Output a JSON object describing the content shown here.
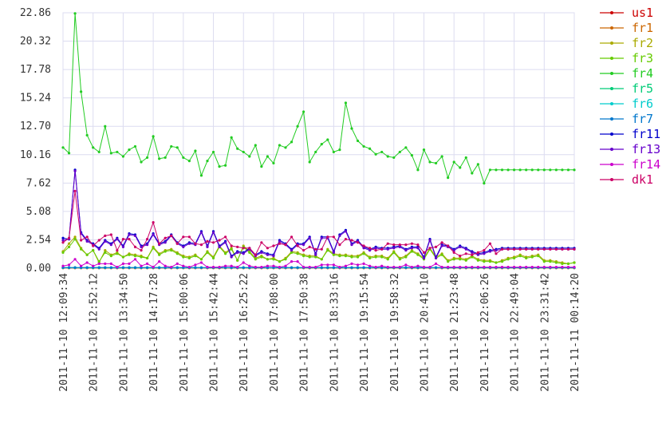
{
  "chart_data": {
    "type": "line",
    "ylim": [
      0,
      22.86
    ],
    "y_ticks": [
      "0.00",
      "2.54",
      "5.08",
      "7.62",
      "10.16",
      "12.70",
      "15.24",
      "17.78",
      "20.32",
      "22.86"
    ],
    "x_tick_labels": [
      "2011-11-10 12:09:34",
      "2011-11-10 12:52:12",
      "2011-11-10 13:34:50",
      "2011-11-10 14:17:28",
      "2011-11-10 15:00:06",
      "2011-11-10 15:42:44",
      "2011-11-10 16:25:22",
      "2011-11-10 17:08:00",
      "2011-11-10 17:50:38",
      "2011-11-10 18:33:16",
      "2011-11-10 19:15:54",
      "2011-11-10 19:58:32",
      "2011-11-10 20:41:10",
      "2011-11-10 21:23:48",
      "2011-11-10 22:06:26",
      "2011-11-10 22:49:04",
      "2011-11-10 23:31:42",
      "2011-11-11 00:14:20"
    ],
    "grid": true,
    "legend_position": "right",
    "n_points": 86,
    "series": [
      {
        "name": "us1",
        "color": "#cc0000",
        "values": [
          0.03,
          0.03,
          0.03,
          0.03,
          0.03,
          0.03,
          0.03,
          0.03,
          0.03,
          0.03,
          0.03,
          0.03,
          0.03,
          0.03,
          0.03,
          0.03,
          0.03,
          0.03,
          0.03,
          0.03,
          0.03,
          0.03,
          0.03,
          0.03,
          0.03,
          0.03,
          0.03,
          0.03,
          0.03,
          0.03,
          0.03,
          0.03,
          0.03,
          0.03,
          0.03,
          0.03,
          0.03,
          0.03,
          0.03,
          0.03,
          0.03,
          0.03,
          0.03,
          0.03,
          0.03,
          0.03,
          0.03,
          0.03,
          0.03,
          0.03,
          0.03,
          0.03,
          0.03,
          0.03,
          0.03,
          0.03,
          0.03,
          0.03,
          0.03,
          0.03,
          0.03,
          0.03,
          0.03,
          0.03,
          0.03,
          0.03,
          0.03,
          0.03,
          0.03,
          0.03,
          0.03,
          0.03,
          0.03,
          0.03,
          0.03,
          0.03,
          0.03,
          0.03,
          0.03,
          0.03,
          0.03,
          0.03,
          0.03,
          0.03,
          0.03,
          0.03
        ]
      },
      {
        "name": "fr1",
        "color": "#cc6600",
        "values": [
          0.02,
          0.02,
          0.02,
          0.02,
          0.02,
          0.02,
          0.02,
          0.02,
          0.02,
          0.02,
          0.02,
          0.02,
          0.02,
          0.02,
          0.02,
          0.02,
          0.02,
          0.02,
          0.02,
          0.02,
          0.02,
          0.02,
          0.02,
          0.02,
          0.02,
          0.02,
          0.02,
          0.02,
          0.02,
          0.02,
          0.02,
          0.02,
          0.02,
          0.02,
          0.02,
          0.02,
          0.02,
          0.02,
          0.02,
          0.02,
          0.02,
          0.02,
          0.02,
          0.02,
          0.02,
          0.02,
          0.02,
          0.02,
          0.02,
          0.02,
          0.02,
          0.02,
          0.02,
          0.02,
          0.02,
          0.02,
          0.02,
          0.02,
          0.02,
          0.02,
          0.02,
          0.02,
          0.02,
          0.02,
          0.02,
          0.02,
          0.02,
          0.02,
          0.02,
          0.02,
          0.02,
          0.02,
          0.02,
          0.02,
          0.02,
          0.02,
          0.02,
          0.02,
          0.02,
          0.02,
          0.02,
          0.02,
          0.02,
          0.02,
          0.02,
          0.02
        ]
      },
      {
        "name": "fr2",
        "color": "#aaaa00",
        "values": [
          1.5,
          2.2,
          2.8,
          1.8,
          1.2,
          1.6,
          0.5,
          1.6,
          1.2,
          1.4,
          1.0,
          1.3,
          1.2,
          1.1,
          0.9,
          1.9,
          1.3,
          1.6,
          1.7,
          1.4,
          1.1,
          1.0,
          1.2,
          0.8,
          1.5,
          1.0,
          2.0,
          1.4,
          1.8,
          0.7,
          2.0,
          1.5,
          0.9,
          1.1,
          0.8,
          0.9,
          0.6,
          0.9,
          1.5,
          1.4,
          1.2,
          1.1,
          1.1,
          0.8,
          1.7,
          1.3,
          1.2,
          1.2,
          1.1,
          1.1,
          1.4,
          1.0,
          1.1,
          1.1,
          0.9,
          1.5,
          0.9,
          1.1,
          1.6,
          1.3,
          0.9,
          1.8,
          1.0,
          1.3,
          0.7,
          0.9,
          0.9,
          0.8,
          1.1,
          0.8,
          0.7,
          0.7,
          0.5,
          0.7,
          0.9,
          1.0,
          1.2,
          1.0,
          1.1,
          1.2,
          0.7,
          0.7,
          0.6,
          0.5,
          0.4,
          0.5
        ]
      },
      {
        "name": "fr3",
        "color": "#66cc00",
        "values": [
          1.4,
          1.9,
          2.6,
          1.7,
          1.2,
          1.6,
          0.6,
          1.4,
          1.1,
          1.3,
          1.0,
          1.2,
          1.1,
          1.0,
          0.9,
          1.8,
          1.2,
          1.5,
          1.6,
          1.3,
          1.0,
          0.9,
          1.1,
          0.8,
          1.4,
          0.9,
          1.9,
          1.3,
          1.7,
          0.7,
          1.9,
          1.4,
          0.8,
          1.0,
          0.8,
          0.8,
          0.6,
          0.8,
          1.4,
          1.3,
          1.1,
          1.0,
          1.0,
          0.8,
          1.6,
          1.2,
          1.1,
          1.1,
          1.0,
          1.0,
          1.3,
          0.9,
          1.0,
          1.0,
          0.8,
          1.4,
          0.8,
          1.0,
          1.5,
          1.2,
          0.8,
          1.7,
          0.9,
          1.2,
          0.6,
          0.8,
          0.8,
          0.7,
          1.0,
          0.7,
          0.6,
          0.6,
          0.5,
          0.6,
          0.8,
          0.9,
          1.1,
          0.9,
          1.0,
          1.1,
          0.6,
          0.6,
          0.5,
          0.4,
          0.4,
          0.5
        ]
      },
      {
        "name": "fr4",
        "color": "#22cc22",
        "values": [
          10.8,
          10.3,
          22.8,
          15.8,
          11.9,
          10.8,
          10.4,
          12.7,
          10.3,
          10.4,
          10.0,
          10.6,
          10.9,
          9.5,
          9.9,
          11.8,
          9.8,
          9.9,
          10.9,
          10.8,
          9.9,
          9.6,
          10.5,
          8.3,
          9.6,
          10.4,
          9.1,
          9.2,
          11.7,
          10.7,
          10.4,
          10.0,
          11.0,
          9.1,
          10.0,
          9.4,
          11.0,
          10.8,
          11.3,
          12.7,
          14.0,
          9.5,
          10.4,
          11.1,
          11.5,
          10.4,
          10.6,
          14.8,
          12.5,
          11.4,
          10.9,
          10.7,
          10.2,
          10.4,
          10.0,
          9.9,
          10.4,
          10.8,
          10.1,
          8.8,
          10.6,
          9.5,
          9.4,
          10.0,
          8.1,
          9.5,
          9.0,
          9.9,
          8.5,
          9.3,
          7.6,
          8.8,
          8.8,
          8.8,
          8.8,
          8.8,
          8.8,
          8.8,
          8.8,
          8.8,
          8.8,
          8.8,
          8.8,
          8.8,
          8.8,
          8.8
        ]
      },
      {
        "name": "fr5",
        "color": "#00cc77",
        "values": [
          0.05,
          0.05,
          0.05,
          0.05,
          0.05,
          0.05,
          0.05,
          0.05,
          0.05,
          0.05,
          0.05,
          0.05,
          0.05,
          0.05,
          0.05,
          0.05,
          0.05,
          0.05,
          0.05,
          0.05,
          0.05,
          0.05,
          0.05,
          0.05,
          0.05,
          0.05,
          0.05,
          0.05,
          0.05,
          0.05,
          0.05,
          0.05,
          0.05,
          0.05,
          0.05,
          0.05,
          0.05,
          0.05,
          0.05,
          0.05,
          0.05,
          0.05,
          0.05,
          0.05,
          0.05,
          0.05,
          0.05,
          0.05,
          0.05,
          0.05,
          0.05,
          0.05,
          0.05,
          0.05,
          0.05,
          0.05,
          0.05,
          0.05,
          0.05,
          0.05,
          0.05,
          0.05,
          0.05,
          0.05,
          0.05,
          0.05,
          0.05,
          0.05,
          0.05,
          0.05,
          0.05,
          0.05,
          0.05,
          0.05,
          0.05,
          0.05,
          0.05,
          0.05,
          0.05,
          0.05,
          0.05,
          0.05,
          0.05,
          0.05,
          0.05,
          0.05
        ]
      },
      {
        "name": "fr6",
        "color": "#00cccc",
        "values": [
          0.04,
          0.04,
          0.04,
          0.04,
          0.04,
          0.04,
          0.04,
          0.04,
          0.04,
          0.04,
          0.04,
          0.04,
          0.04,
          0.04,
          0.04,
          0.04,
          0.04,
          0.04,
          0.04,
          0.04,
          0.04,
          0.04,
          0.04,
          0.04,
          0.04,
          0.04,
          0.04,
          0.04,
          0.04,
          0.04,
          0.04,
          0.04,
          0.04,
          0.04,
          0.04,
          0.04,
          0.04,
          0.04,
          0.04,
          0.04,
          0.04,
          0.04,
          0.04,
          0.04,
          0.04,
          0.04,
          0.04,
          0.04,
          0.04,
          0.04,
          0.04,
          0.04,
          0.04,
          0.04,
          0.04,
          0.04,
          0.04,
          0.04,
          0.04,
          0.04,
          0.04,
          0.04,
          0.04,
          0.04,
          0.04,
          0.04,
          0.04,
          0.04,
          0.04,
          0.04,
          0.04,
          0.04,
          0.04,
          0.04,
          0.04,
          0.04,
          0.04,
          0.04,
          0.04,
          0.04,
          0.04,
          0.04,
          0.04,
          0.04,
          0.04,
          0.04
        ]
      },
      {
        "name": "fr7",
        "color": "#0077cc",
        "values": [
          0.06,
          0.06,
          0.06,
          0.06,
          0.06,
          0.06,
          0.06,
          0.06,
          0.06,
          0.06,
          0.06,
          0.06,
          0.06,
          0.06,
          0.06,
          0.06,
          0.06,
          0.06,
          0.06,
          0.06,
          0.06,
          0.06,
          0.06,
          0.06,
          0.06,
          0.06,
          0.06,
          0.06,
          0.06,
          0.06,
          0.06,
          0.06,
          0.06,
          0.06,
          0.06,
          0.06,
          0.06,
          0.06,
          0.06,
          0.06,
          0.06,
          0.06,
          0.06,
          0.06,
          0.06,
          0.06,
          0.06,
          0.06,
          0.06,
          0.06,
          0.06,
          0.06,
          0.06,
          0.06,
          0.06,
          0.06,
          0.06,
          0.06,
          0.06,
          0.06,
          0.06,
          0.06,
          0.06,
          0.06,
          0.06,
          0.06,
          0.06,
          0.06,
          0.06,
          0.06,
          0.06,
          0.06,
          0.06,
          0.06,
          0.06,
          0.06,
          0.06,
          0.06,
          0.06,
          0.06,
          0.06,
          0.06,
          0.06,
          0.06,
          0.06,
          0.06
        ]
      },
      {
        "name": "fr11",
        "color": "#0000cc",
        "values": [
          2.7,
          2.6,
          8.8,
          3.2,
          2.5,
          2.2,
          1.8,
          2.5,
          2.2,
          2.7,
          2.0,
          3.1,
          3.0,
          2.0,
          2.2,
          3.1,
          2.2,
          2.4,
          3.0,
          2.3,
          2.0,
          2.3,
          2.2,
          3.3,
          2.0,
          3.3,
          2.0,
          2.4,
          1.1,
          1.5,
          1.4,
          1.8,
          1.2,
          1.5,
          1.3,
          1.2,
          2.5,
          2.2,
          1.7,
          2.2,
          2.2,
          2.8,
          1.3,
          2.8,
          2.8,
          1.5,
          3.0,
          3.4,
          2.2,
          2.5,
          1.9,
          1.7,
          1.9,
          1.8,
          1.8,
          1.9,
          2.0,
          1.7,
          1.9,
          1.9,
          1.0,
          2.6,
          1.0,
          2.1,
          2.0,
          1.7,
          2.0,
          1.8,
          1.5,
          1.3,
          1.4,
          1.6,
          1.7,
          1.8,
          1.8,
          1.8,
          1.8,
          1.8,
          1.8,
          1.8,
          1.8,
          1.8,
          1.8,
          1.8,
          1.8,
          1.8
        ]
      },
      {
        "name": "fr13",
        "color": "#6600cc",
        "values": [
          2.5,
          2.6,
          8.7,
          3.1,
          2.4,
          2.1,
          1.7,
          2.4,
          2.1,
          2.6,
          1.9,
          3.0,
          2.9,
          1.9,
          2.1,
          3.0,
          2.1,
          2.3,
          2.9,
          2.2,
          1.9,
          2.2,
          2.1,
          3.2,
          1.9,
          3.2,
          1.9,
          2.3,
          1.0,
          1.4,
          1.3,
          1.7,
          1.1,
          1.4,
          1.2,
          1.1,
          2.4,
          2.1,
          1.6,
          2.1,
          2.1,
          2.7,
          1.2,
          2.7,
          2.7,
          1.4,
          2.9,
          3.3,
          2.1,
          2.4,
          1.8,
          1.6,
          1.8,
          1.7,
          1.7,
          1.8,
          1.9,
          1.6,
          1.8,
          1.8,
          0.9,
          2.5,
          0.9,
          2.0,
          1.9,
          1.6,
          1.9,
          1.7,
          1.4,
          1.2,
          1.3,
          1.5,
          1.6,
          1.7,
          1.7,
          1.7,
          1.7,
          1.7,
          1.7,
          1.7,
          1.7,
          1.7,
          1.7,
          1.7,
          1.7,
          1.7
        ]
      },
      {
        "name": "fr14",
        "color": "#cc00cc",
        "values": [
          0.2,
          0.3,
          0.8,
          0.2,
          0.5,
          0.2,
          0.4,
          0.4,
          0.4,
          0.1,
          0.4,
          0.4,
          0.8,
          0.2,
          0.4,
          0.1,
          0.6,
          0.2,
          0.1,
          0.4,
          0.2,
          0.1,
          0.3,
          0.5,
          0.1,
          0.1,
          0.1,
          0.2,
          0.2,
          0.1,
          0.5,
          0.2,
          0.1,
          0.1,
          0.2,
          0.2,
          0.1,
          0.2,
          0.6,
          0.6,
          0.1,
          0.1,
          0.1,
          0.3,
          0.3,
          0.3,
          0.1,
          0.2,
          0.4,
          0.3,
          0.4,
          0.2,
          0.1,
          0.2,
          0.1,
          0.1,
          0.1,
          0.3,
          0.1,
          0.2,
          0.1,
          0.1,
          0.4,
          0.1,
          0.1,
          0.1,
          0.1,
          0.1,
          0.1,
          0.1,
          0.1,
          0.1,
          0.1,
          0.1,
          0.1,
          0.1,
          0.1,
          0.1,
          0.1,
          0.1,
          0.1,
          0.1,
          0.1,
          0.1,
          0.1,
          0.1
        ]
      },
      {
        "name": "dk1",
        "color": "#cc0066",
        "values": [
          2.3,
          2.7,
          6.9,
          2.5,
          2.8,
          2.0,
          2.5,
          2.9,
          3.0,
          1.6,
          2.6,
          2.6,
          1.9,
          1.6,
          2.6,
          4.1,
          2.2,
          2.7,
          2.9,
          2.2,
          2.8,
          2.8,
          2.2,
          2.1,
          2.4,
          2.3,
          2.5,
          2.8,
          2.0,
          1.9,
          1.8,
          1.8,
          1.2,
          2.3,
          1.8,
          2.0,
          2.2,
          2.1,
          2.8,
          2.0,
          1.6,
          1.9,
          1.7,
          1.7,
          2.8,
          2.8,
          2.1,
          2.6,
          2.5,
          2.3,
          2.0,
          1.8,
          1.6,
          1.7,
          2.2,
          2.1,
          2.1,
          2.1,
          2.2,
          2.1,
          1.4,
          1.8,
          1.9,
          2.3,
          2.0,
          1.4,
          1.1,
          1.3,
          1.2,
          1.4,
          1.6,
          2.2,
          1.3,
          1.7,
          1.7,
          1.7,
          1.7,
          1.7,
          1.7,
          1.7,
          1.7,
          1.7,
          1.7,
          1.7,
          1.7,
          1.7
        ]
      }
    ]
  }
}
